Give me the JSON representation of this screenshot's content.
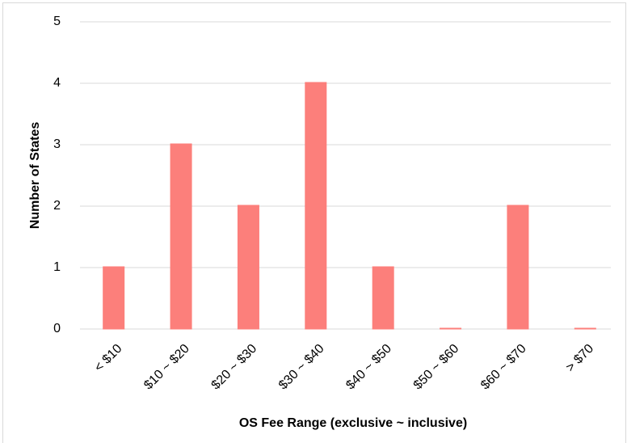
{
  "chart_data": {
    "type": "bar",
    "x_label": "OS Fee Range (exclusive ~ inclusive)",
    "y_label": "Number of States",
    "categories": [
      "< $10",
      "$10 ~ $20",
      "$20 ~ $30",
      "$30 ~ $40",
      "$40 ~ $50",
      "$50 ~ $60",
      "$60 ~ $70",
      "> $70"
    ],
    "values": [
      1,
      3,
      2,
      4,
      1,
      0,
      2,
      0
    ],
    "color": "#fc7f7b",
    "ylim": [
      0,
      5
    ],
    "yticks": [
      0,
      1,
      2,
      3,
      4,
      5
    ],
    "grid": true
  }
}
